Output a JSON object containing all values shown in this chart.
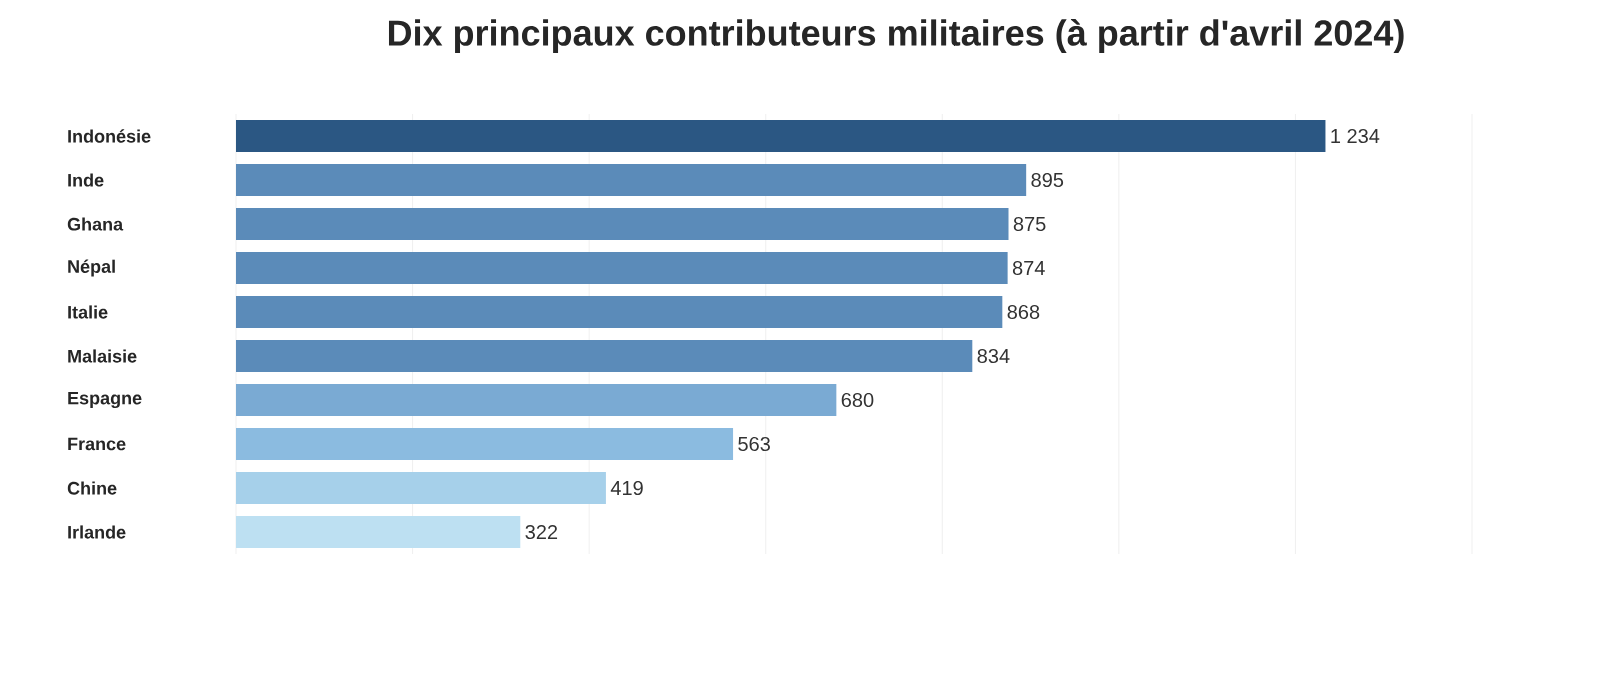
{
  "chart_data": {
    "type": "bar",
    "orientation": "horizontal",
    "title": "Dix principaux contributeurs militaires (à partir d'avril 2024)",
    "categories": [
      "Indonésie",
      "Inde",
      "Ghana",
      "Népal",
      "Italie",
      "Malaisie",
      "Espagne",
      "France",
      "Chine",
      "Irlande"
    ],
    "values": [
      1234,
      895,
      875,
      874,
      868,
      834,
      680,
      563,
      419,
      322
    ],
    "value_labels": [
      "1 234",
      "895",
      "875",
      "874",
      "868",
      "834",
      "680",
      "563",
      "419",
      "322"
    ],
    "colors": [
      "#2b5783",
      "#5b8bb9",
      "#5b8bb9",
      "#5b8bb9",
      "#5b8bb9",
      "#5b8bb9",
      "#7aaad3",
      "#8bbbe0",
      "#a6d0ea",
      "#bde0f2"
    ],
    "xlim": [
      0,
      1400
    ],
    "xticks": [
      {
        "value": 0,
        "label": null
      },
      {
        "value": 200,
        "label": null
      },
      {
        "value": 400,
        "label": null
      },
      {
        "value": 600,
        "label": null
      },
      {
        "value": 800,
        "label": null
      },
      {
        "value": 1000,
        "label": null
      },
      {
        "value": 1200,
        "label": null
      },
      {
        "value": 1400,
        "label": null
      }
    ],
    "grid": "x",
    "tick_labels": "y"
  }
}
